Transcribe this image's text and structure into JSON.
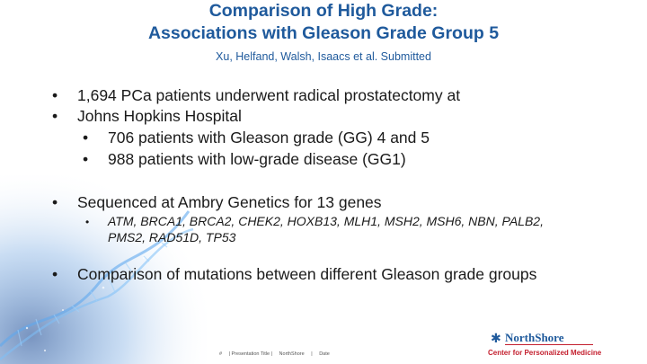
{
  "title": {
    "line1": "Comparison of High Grade:",
    "line2": "Associations with Gleason Grade Group 5"
  },
  "subtitle": "Xu, Helfand, Walsh, Isaacs et al. Submitted",
  "bullets": {
    "marker": "•",
    "b1": "1,694 PCa patients underwent radical prostatectomy at",
    "b2": "Johns Hopkins Hospital",
    "sub1": "706 patients with Gleason grade (GG) 4 and 5",
    "sub2": "988 patients with low-grade disease (GG1)",
    "b3": "Sequenced at Ambry Genetics for 13 genes",
    "genes": "ATM, BRCA1, BRCA2, CHEK2, HOXB13, MLH1, MSH2, MSH6, NBN, PALB2, PMS2, RAD51D, TP53",
    "b4": "Comparison of mutations between different Gleason grade groups"
  },
  "footer": {
    "page": "#",
    "presentation": "| Presentation Title |",
    "org": "NorthShore",
    "sep": "|",
    "date": "Date"
  },
  "logo": {
    "star": "✱",
    "name": "NorthShore",
    "tagline": "Center for Personalized Medicine"
  },
  "colors": {
    "title": "#1f5a9c",
    "logo_blue": "#1f5a9c",
    "logo_red": "#c4202f",
    "dna": "#3a86d4"
  }
}
